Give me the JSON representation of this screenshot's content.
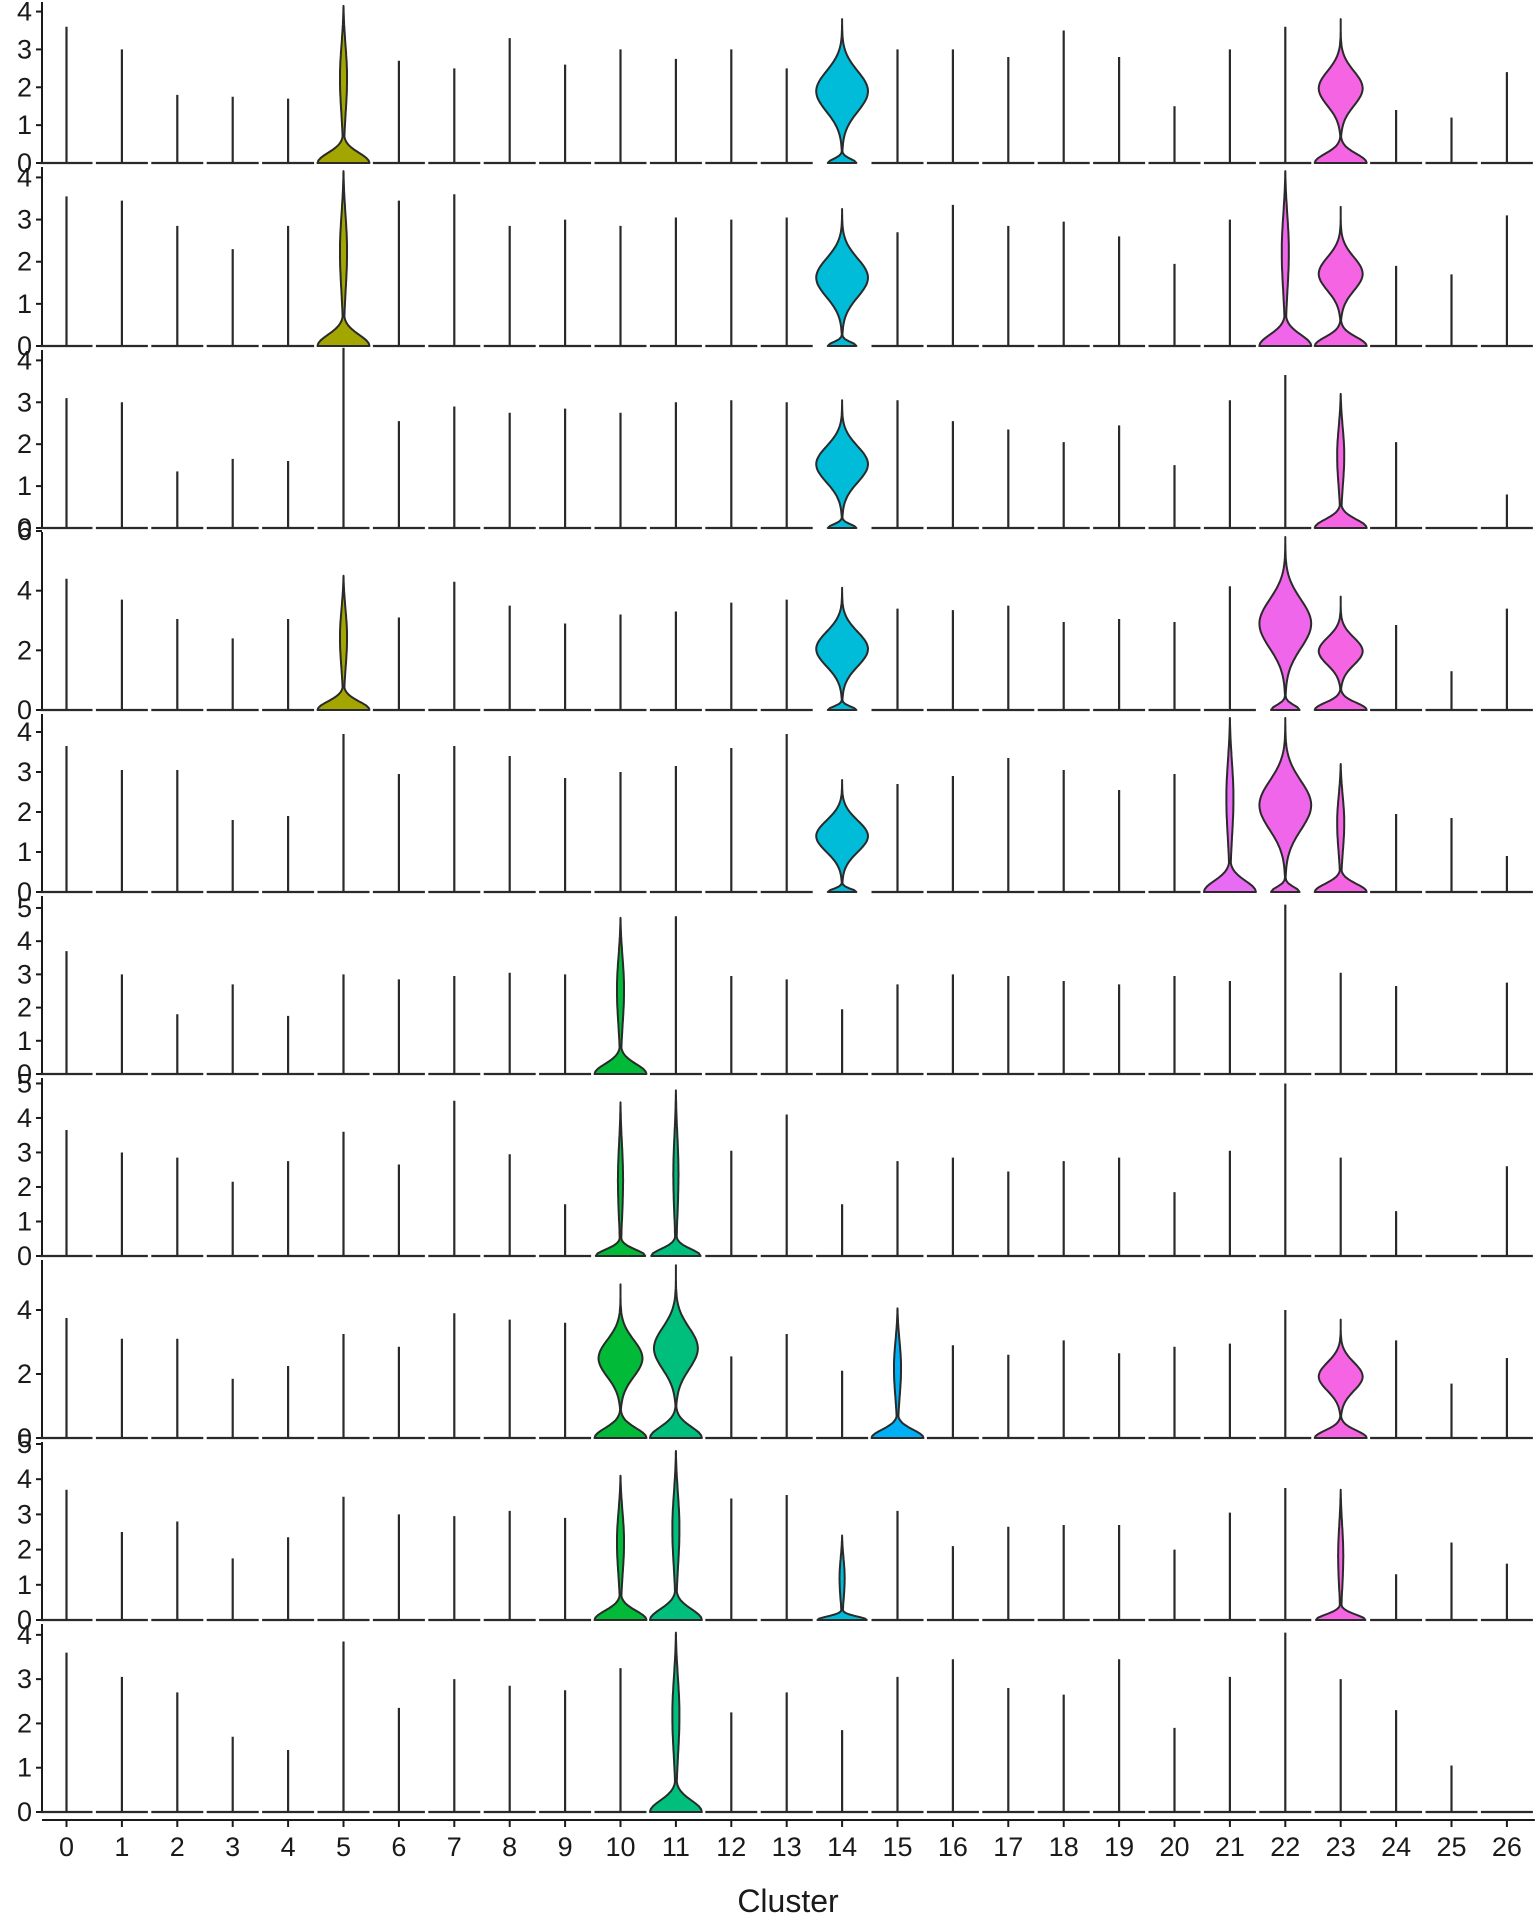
{
  "chart_data": {
    "type": "violin",
    "title": "",
    "xlabel": "Cluster",
    "ylabel": "",
    "categories": [
      "0",
      "1",
      "2",
      "3",
      "4",
      "5",
      "6",
      "7",
      "8",
      "9",
      "10",
      "11",
      "12",
      "13",
      "14",
      "15",
      "16",
      "17",
      "18",
      "19",
      "20",
      "21",
      "22",
      "23",
      "24",
      "25",
      "26"
    ],
    "colors": {
      "5": "#a3a500",
      "10": "#00ba38",
      "11": "#00bf7d",
      "14": "#00bcd8",
      "15": "#00b0f6",
      "21": "#e76bf3",
      "22": "#f066ea",
      "23": "#f564e3"
    },
    "panels": [
      {
        "ylim": [
          0,
          4.2
        ],
        "yticks": [
          0,
          1,
          2,
          3,
          4
        ],
        "max": [
          3.6,
          3.0,
          1.8,
          1.75,
          1.7,
          4.15,
          2.7,
          2.5,
          3.3,
          2.6,
          3.0,
          2.75,
          3.0,
          2.5,
          3.8,
          3.0,
          3.0,
          2.8,
          3.5,
          2.8,
          1.5,
          3.0,
          3.6,
          3.8,
          1.4,
          1.2,
          2.4
        ],
        "violins": [
          {
            "cluster": "5",
            "max": 4.15,
            "shape": "low"
          },
          {
            "cluster": "14",
            "max": 3.8,
            "shape": "mid"
          },
          {
            "cluster": "23",
            "max": 3.8,
            "shape": "hourglass"
          }
        ]
      },
      {
        "ylim": [
          0,
          4.2
        ],
        "yticks": [
          0,
          1,
          2,
          3,
          4
        ],
        "max": [
          3.55,
          3.45,
          2.85,
          2.3,
          2.85,
          4.15,
          3.45,
          3.6,
          2.85,
          3.0,
          2.85,
          3.05,
          3.0,
          3.05,
          3.25,
          2.7,
          3.35,
          2.85,
          2.95,
          2.6,
          1.95,
          3.0,
          4.15,
          3.3,
          1.9,
          1.7,
          3.1
        ],
        "violins": [
          {
            "cluster": "5",
            "max": 4.15,
            "shape": "low"
          },
          {
            "cluster": "14",
            "max": 3.25,
            "shape": "mid"
          },
          {
            "cluster": "22",
            "max": 4.15,
            "shape": "low"
          },
          {
            "cluster": "23",
            "max": 3.3,
            "shape": "hourglass"
          }
        ]
      },
      {
        "ylim": [
          0,
          4.2
        ],
        "yticks": [
          0,
          1,
          2,
          3,
          4
        ],
        "max": [
          3.1,
          3.0,
          1.35,
          1.65,
          1.6,
          4.3,
          2.55,
          2.9,
          2.75,
          2.85,
          2.75,
          3.0,
          3.05,
          3.0,
          3.05,
          3.05,
          2.55,
          2.35,
          2.05,
          2.45,
          1.5,
          3.05,
          3.65,
          3.2,
          2.05,
          0,
          0.8
        ],
        "violins": [
          {
            "cluster": "14",
            "max": 3.05,
            "shape": "mid"
          },
          {
            "cluster": "23",
            "max": 3.2,
            "shape": "low"
          }
        ]
      },
      {
        "ylim": [
          0,
          5.9
        ],
        "yticks": [
          0,
          2,
          4,
          6
        ],
        "max": [
          4.4,
          3.7,
          3.05,
          2.4,
          3.05,
          4.5,
          3.1,
          4.3,
          3.5,
          2.9,
          3.2,
          3.3,
          3.6,
          3.7,
          4.1,
          3.4,
          3.35,
          3.5,
          2.95,
          3.05,
          2.95,
          4.15,
          5.8,
          3.8,
          2.85,
          1.3,
          3.4
        ],
        "violins": [
          {
            "cluster": "5",
            "max": 4.5,
            "shape": "low"
          },
          {
            "cluster": "14",
            "max": 4.1,
            "shape": "mid"
          },
          {
            "cluster": "22",
            "max": 5.8,
            "shape": "mid"
          },
          {
            "cluster": "23",
            "max": 3.8,
            "shape": "hourglass"
          }
        ]
      },
      {
        "ylim": [
          0,
          4.4
        ],
        "yticks": [
          0,
          1,
          2,
          3,
          4
        ],
        "max": [
          3.65,
          3.05,
          3.05,
          1.8,
          1.9,
          3.95,
          2.95,
          3.65,
          3.4,
          2.85,
          3.0,
          3.15,
          3.6,
          3.95,
          2.8,
          2.7,
          2.9,
          3.35,
          3.05,
          2.55,
          2.95,
          4.35,
          4.35,
          3.2,
          1.95,
          1.85,
          0.9
        ],
        "violins": [
          {
            "cluster": "14",
            "max": 2.8,
            "shape": "mid"
          },
          {
            "cluster": "21",
            "max": 4.35,
            "shape": "low"
          },
          {
            "cluster": "22",
            "max": 4.35,
            "shape": "mid"
          },
          {
            "cluster": "23",
            "max": 3.2,
            "shape": "low"
          }
        ]
      },
      {
        "ylim": [
          0,
          5.3
        ],
        "yticks": [
          0,
          1,
          2,
          3,
          4,
          5
        ],
        "max": [
          3.7,
          3.0,
          1.8,
          2.7,
          1.75,
          3.0,
          2.85,
          2.95,
          3.05,
          3.0,
          4.7,
          4.75,
          2.95,
          2.85,
          1.95,
          2.7,
          3.0,
          2.95,
          2.8,
          2.7,
          2.95,
          2.8,
          5.1,
          3.05,
          2.65,
          0,
          2.75
        ],
        "violins": [
          {
            "cluster": "10",
            "max": 4.7,
            "shape": "low"
          }
        ]
      },
      {
        "ylim": [
          0,
          5.1
        ],
        "yticks": [
          0,
          1,
          2,
          3,
          4,
          5
        ],
        "max": [
          3.65,
          3.0,
          2.85,
          2.15,
          2.75,
          3.6,
          2.65,
          4.5,
          2.95,
          1.5,
          4.45,
          4.8,
          3.05,
          4.1,
          1.5,
          2.75,
          2.85,
          2.45,
          2.75,
          2.85,
          1.85,
          3.05,
          5.0,
          2.85,
          1.3,
          0,
          2.6
        ],
        "violins": [
          {
            "cluster": "10",
            "max": 4.45,
            "shape": "thin"
          },
          {
            "cluster": "11",
            "max": 4.8,
            "shape": "thin"
          }
        ]
      },
      {
        "ylim": [
          0,
          5.5
        ],
        "yticks": [
          0,
          2,
          4
        ],
        "max": [
          3.75,
          3.1,
          3.1,
          1.85,
          2.25,
          3.25,
          2.85,
          3.9,
          3.7,
          3.6,
          4.8,
          5.4,
          2.55,
          3.25,
          2.1,
          4.05,
          2.9,
          2.6,
          3.05,
          2.65,
          2.85,
          2.95,
          4.0,
          3.7,
          3.05,
          1.7,
          2.5
        ],
        "violins": [
          {
            "cluster": "10",
            "max": 4.8,
            "shape": "hourglass"
          },
          {
            "cluster": "11",
            "max": 5.4,
            "shape": "hourglass"
          },
          {
            "cluster": "15",
            "max": 4.05,
            "shape": "low"
          },
          {
            "cluster": "23",
            "max": 3.7,
            "shape": "hourglass"
          }
        ]
      },
      {
        "ylim": [
          0,
          5.0
        ],
        "yticks": [
          0,
          1,
          2,
          3,
          4,
          5
        ],
        "max": [
          3.7,
          2.5,
          2.8,
          1.75,
          2.35,
          3.5,
          3.0,
          2.95,
          3.1,
          2.9,
          4.1,
          4.8,
          3.45,
          3.55,
          2.4,
          3.1,
          2.1,
          2.65,
          2.7,
          2.7,
          2.0,
          3.05,
          3.75,
          3.7,
          1.3,
          2.2,
          1.6
        ],
        "violins": [
          {
            "cluster": "10",
            "max": 4.1,
            "shape": "low"
          },
          {
            "cluster": "11",
            "max": 4.8,
            "shape": "low"
          },
          {
            "cluster": "14",
            "max": 2.4,
            "shape": "thin"
          },
          {
            "cluster": "23",
            "max": 3.7,
            "shape": "thin"
          }
        ]
      },
      {
        "ylim": [
          0,
          4.2
        ],
        "yticks": [
          0,
          1,
          2,
          3,
          4
        ],
        "max": [
          3.6,
          3.05,
          2.7,
          1.7,
          1.4,
          3.85,
          2.35,
          3.0,
          2.85,
          2.75,
          3.25,
          4.05,
          2.25,
          2.7,
          1.85,
          3.05,
          3.45,
          2.8,
          2.65,
          3.45,
          1.9,
          3.05,
          4.05,
          3.0,
          2.3,
          1.05,
          0
        ],
        "violins": [
          {
            "cluster": "11",
            "max": 4.05,
            "shape": "low"
          }
        ]
      }
    ]
  }
}
